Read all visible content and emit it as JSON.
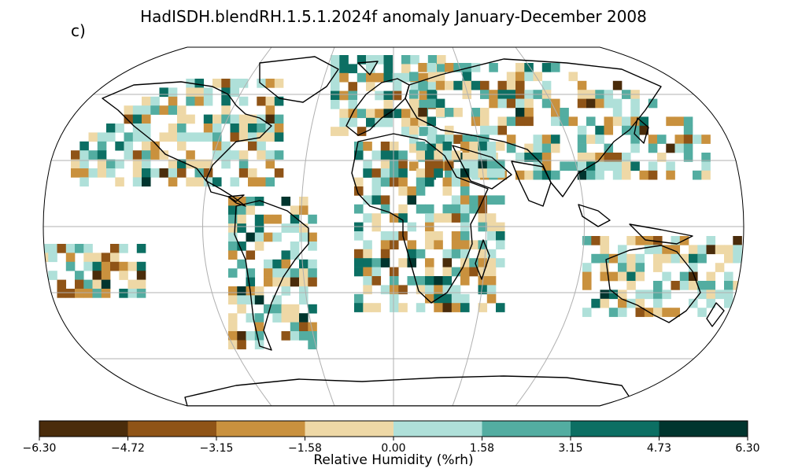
{
  "title": "HadISDH.blendRH.1.5.1.2024f anomaly January-December 2008",
  "panel_label": "c)",
  "colorbar": {
    "label": "Relative Humidity (%rh)",
    "ticks": [
      "−6.30",
      "−4.72",
      "−3.15",
      "−1.58",
      "0.00",
      "1.58",
      "3.15",
      "4.73",
      "6.30"
    ],
    "colors": [
      "#4a2c0b",
      "#8f5417",
      "#c9913e",
      "#eed8a6",
      "#afe0d9",
      "#53ada1",
      "#0c6f63",
      "#00352e"
    ]
  },
  "map": {
    "projection": "Robinson",
    "graticule_color": "#b0b0b0",
    "coast_color": "#000000"
  }
}
